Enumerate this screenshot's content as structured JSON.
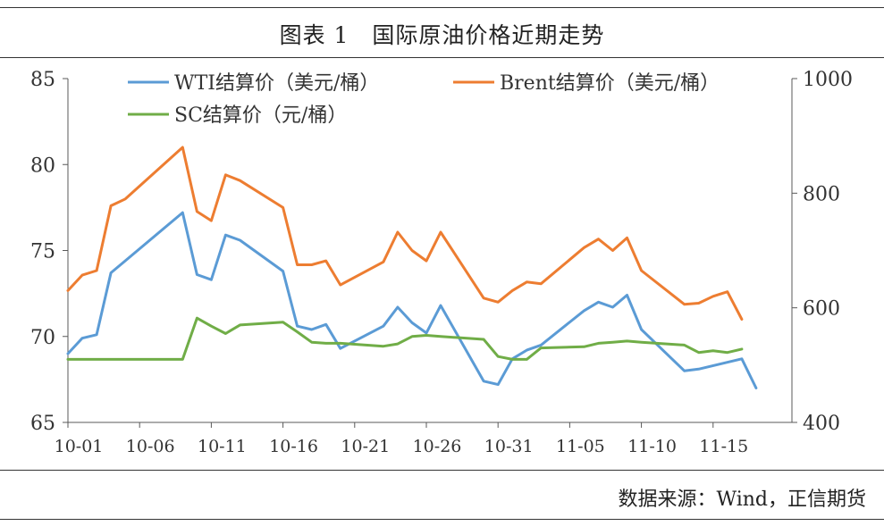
{
  "figure": {
    "title": "图表 1　国际原油价格近期走势",
    "source": "数据来源：Wind，正信期货"
  },
  "chart_data": {
    "type": "line",
    "title": "国际原油价格近期走势",
    "x_tick_labels": [
      "10-01",
      "10-06",
      "10-11",
      "10-16",
      "10-21",
      "10-26",
      "10-31",
      "11-05",
      "11-10",
      "11-15"
    ],
    "y_left": {
      "ylim": [
        65,
        85
      ],
      "ticks": [
        65,
        70,
        75,
        80,
        85
      ]
    },
    "y_right": {
      "ylim": [
        400,
        1000
      ],
      "ticks": [
        400,
        600,
        800,
        1000
      ]
    },
    "legend_position": "top",
    "series": [
      {
        "name": "WTI结算价（美元/桶）",
        "axis": "left",
        "color": "#5B9BD5",
        "x": [
          0,
          0.5,
          1.5,
          2.5,
          3.5,
          4.5,
          5.5,
          6.5,
          7.5,
          8.5,
          9.5,
          10.5,
          11.5,
          12.5,
          13.5,
          14.5,
          15.5,
          16.5,
          17.5,
          18.5,
          19.5,
          20.5,
          21.5,
          22.5,
          23.5,
          24.5,
          25.5,
          26.5,
          27.5,
          28.5,
          29.5,
          30.5,
          31.5,
          32.5,
          33.5,
          34.5,
          35.5,
          36.5,
          37.5,
          38.5,
          39.5,
          40.5,
          41.5,
          42.5,
          43.5,
          44.5,
          45.5,
          46.5,
          47.5,
          48.5,
          49.5
        ],
        "values": [
          69.0,
          69.9,
          70.1,
          73.7,
          74.4,
          null,
          null,
          null,
          77.2,
          73.6,
          73.3,
          75.9,
          75.6,
          null,
          null,
          73.8,
          70.6,
          70.4,
          70.7,
          69.3,
          null,
          null,
          70.6,
          71.7,
          70.8,
          70.2,
          71.8,
          null,
          null,
          67.4,
          67.2,
          68.7,
          69.2,
          69.5,
          null,
          null,
          71.5,
          72.0,
          71.7,
          72.4,
          70.4,
          null,
          null,
          68.0,
          68.1,
          null,
          null,
          68.7,
          67.0,
          null,
          null
        ],
        "note": "null marks gaps where the line is drawn through (weekends / holidays)"
      },
      {
        "name": "Brent结算价（美元/桶）",
        "axis": "right",
        "color": "#ED7D31",
        "values": [
          630,
          657,
          665,
          778,
          790,
          null,
          null,
          null,
          880,
          768,
          752,
          832,
          822,
          null,
          null,
          775,
          675,
          675,
          682,
          640,
          null,
          null,
          680,
          732,
          700,
          682,
          732,
          null,
          null,
          617,
          610,
          630,
          645,
          642,
          null,
          null,
          705,
          720,
          700,
          722,
          665,
          null,
          null,
          606,
          608,
          620,
          628,
          580
        ]
      },
      {
        "name": "SC结算价（元/桶）",
        "axis": "right",
        "color": "#70AD47",
        "values": [
          510,
          510,
          510,
          510,
          510,
          null,
          null,
          null,
          510,
          582,
          568,
          555,
          570,
          null,
          null,
          575,
          558,
          540,
          538,
          538,
          null,
          null,
          533,
          537,
          550,
          552,
          550,
          null,
          null,
          545,
          515,
          510,
          510,
          530,
          null,
          null,
          532,
          538,
          540,
          542,
          540,
          null,
          null,
          535,
          522,
          525,
          522,
          528
        ]
      }
    ]
  }
}
